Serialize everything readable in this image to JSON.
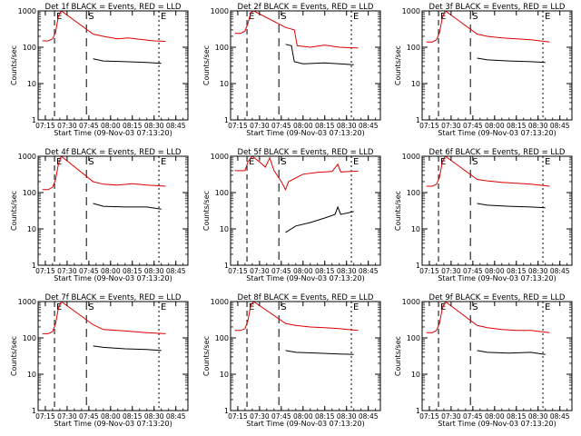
{
  "ui": {
    "colors": {
      "events": "#000000",
      "lld": "#dd0000",
      "axis": "#000000",
      "background": "#ffffff"
    }
  },
  "shared": {
    "xlabel": "Start Time (09-Nov-03 07:13:20)",
    "ylabel": "Counts/sec",
    "xticks": [
      "07:15",
      "07:30",
      "07:45",
      "08:00",
      "08:15",
      "08:30",
      "08:45"
    ],
    "yticks": [
      "1",
      "10",
      "100",
      "1000"
    ],
    "xlim_minutes": [
      -3.3,
      100
    ],
    "ylim": [
      1,
      1000
    ],
    "markers": {
      "e1": "E",
      "s": "S",
      "e2": "E"
    }
  },
  "chart_data": [
    {
      "type": "line",
      "title": "Det 1f BLACK = Events, RED = LLD",
      "yscale": "log",
      "markers_min": [
        8,
        30,
        80
      ],
      "series": [
        {
          "name": "Events",
          "color": "#000000",
          "x": [
            "07:48",
            "07:55",
            "08:10",
            "08:25",
            "08:35"
          ],
          "values": [
            48,
            42,
            40,
            38,
            36
          ]
        },
        {
          "name": "LLD",
          "color": "#dd0000",
          "x": [
            "07:13",
            "07:17",
            "07:20",
            "07:22",
            "07:24",
            "07:26",
            "07:48",
            "07:55",
            "08:05",
            "08:12",
            "08:20",
            "08:30",
            "08:38"
          ],
          "values": [
            150,
            150,
            170,
            250,
            700,
            1000,
            230,
            200,
            170,
            180,
            165,
            150,
            145
          ]
        }
      ]
    },
    {
      "type": "line",
      "title": "Det 2f BLACK = Events, RED = LLD",
      "yscale": "log",
      "markers_min": [
        8,
        30,
        80
      ],
      "series": [
        {
          "name": "Events",
          "color": "#000000",
          "x": [
            "07:48",
            "07:52",
            "07:54",
            "08:00",
            "08:15",
            "08:25",
            "08:35"
          ],
          "values": [
            120,
            110,
            40,
            35,
            37,
            35,
            33
          ]
        },
        {
          "name": "LLD",
          "color": "#dd0000",
          "x": [
            "07:13",
            "07:17",
            "07:20",
            "07:22",
            "07:24",
            "07:26",
            "07:48",
            "07:54",
            "07:56",
            "08:05",
            "08:15",
            "08:25",
            "08:38"
          ],
          "values": [
            240,
            240,
            280,
            450,
            900,
            1000,
            350,
            300,
            110,
            100,
            115,
            100,
            95
          ]
        }
      ]
    },
    {
      "type": "line",
      "title": "Det 3f BLACK = Events, RED = LLD",
      "yscale": "log",
      "markers_min": [
        8,
        30,
        80
      ],
      "series": [
        {
          "name": "Events",
          "color": "#000000",
          "x": [
            "07:48",
            "07:55",
            "08:10",
            "08:25",
            "08:35"
          ],
          "values": [
            50,
            45,
            42,
            40,
            38
          ]
        },
        {
          "name": "LLD",
          "color": "#dd0000",
          "x": [
            "07:13",
            "07:17",
            "07:20",
            "07:22",
            "07:24",
            "07:26",
            "07:48",
            "07:55",
            "08:05",
            "08:15",
            "08:25",
            "08:38"
          ],
          "values": [
            140,
            140,
            160,
            250,
            650,
            1000,
            230,
            200,
            180,
            170,
            160,
            140
          ]
        }
      ]
    },
    {
      "type": "line",
      "title": "Det 4f BLACK = Events, RED = LLD",
      "yscale": "log",
      "markers_min": [
        8,
        30,
        80
      ],
      "series": [
        {
          "name": "Events",
          "color": "#000000",
          "x": [
            "07:48",
            "07:55",
            "08:10",
            "08:25",
            "08:35"
          ],
          "values": [
            50,
            42,
            40,
            40,
            35
          ]
        },
        {
          "name": "LLD",
          "color": "#dd0000",
          "x": [
            "07:13",
            "07:17",
            "07:20",
            "07:22",
            "07:24",
            "07:26",
            "07:48",
            "07:55",
            "08:05",
            "08:15",
            "08:25",
            "08:38"
          ],
          "values": [
            120,
            120,
            140,
            220,
            600,
            1000,
            200,
            170,
            160,
            175,
            160,
            150
          ]
        }
      ]
    },
    {
      "type": "line",
      "title": "Det 5f BLACK = Events, RED = LLD",
      "yscale": "log",
      "markers_min": [
        8,
        30,
        80
      ],
      "series": [
        {
          "name": "Events",
          "color": "#000000",
          "x": [
            "07:48",
            "07:55",
            "08:05",
            "08:15",
            "08:22",
            "08:24",
            "08:26",
            "08:35"
          ],
          "values": [
            8,
            12,
            15,
            20,
            25,
            40,
            25,
            30
          ]
        },
        {
          "name": "LLD",
          "color": "#dd0000",
          "x": [
            "07:13",
            "07:20",
            "07:22",
            "07:25",
            "07:30",
            "07:34",
            "07:37",
            "07:40",
            "07:45",
            "07:48",
            "07:50",
            "08:00",
            "08:10",
            "08:20",
            "08:24",
            "08:26",
            "08:38"
          ],
          "values": [
            400,
            400,
            700,
            1000,
            700,
            500,
            900,
            400,
            200,
            120,
            200,
            320,
            360,
            380,
            600,
            370,
            390
          ]
        }
      ]
    },
    {
      "type": "line",
      "title": "Det 6f BLACK = Events, RED = LLD",
      "yscale": "log",
      "markers_min": [
        8,
        30,
        80
      ],
      "series": [
        {
          "name": "Events",
          "color": "#000000",
          "x": [
            "07:48",
            "07:55",
            "08:10",
            "08:25",
            "08:35"
          ],
          "values": [
            50,
            45,
            42,
            40,
            38
          ]
        },
        {
          "name": "LLD",
          "color": "#dd0000",
          "x": [
            "07:13",
            "07:17",
            "07:20",
            "07:22",
            "07:24",
            "07:26",
            "07:48",
            "07:55",
            "08:05",
            "08:15",
            "08:25",
            "08:38"
          ],
          "values": [
            150,
            150,
            170,
            260,
            700,
            1000,
            230,
            210,
            190,
            180,
            170,
            150
          ]
        }
      ]
    },
    {
      "type": "line",
      "title": "Det 7f BLACK = Events, RED = LLD",
      "yscale": "log",
      "markers_min": [
        8,
        30,
        80
      ],
      "series": [
        {
          "name": "Events",
          "color": "#000000",
          "x": [
            "07:48",
            "07:55",
            "08:10",
            "08:25",
            "08:35"
          ],
          "values": [
            60,
            55,
            50,
            48,
            45
          ]
        },
        {
          "name": "LLD",
          "color": "#dd0000",
          "x": [
            "07:13",
            "07:17",
            "07:20",
            "07:22",
            "07:24",
            "07:26",
            "07:48",
            "07:55",
            "08:05",
            "08:15",
            "08:25",
            "08:38"
          ],
          "values": [
            130,
            130,
            150,
            240,
            650,
            1000,
            230,
            170,
            160,
            150,
            140,
            130
          ]
        }
      ]
    },
    {
      "type": "line",
      "title": "Det 8f BLACK = Events, RED = LLD",
      "yscale": "log",
      "markers_min": [
        8,
        30,
        80
      ],
      "series": [
        {
          "name": "Events",
          "color": "#000000",
          "x": [
            "07:48",
            "07:55",
            "08:10",
            "08:25",
            "08:35"
          ],
          "values": [
            45,
            40,
            38,
            36,
            35
          ]
        },
        {
          "name": "LLD",
          "color": "#dd0000",
          "x": [
            "07:13",
            "07:17",
            "07:20",
            "07:22",
            "07:24",
            "07:26",
            "07:48",
            "07:55",
            "08:05",
            "08:15",
            "08:25",
            "08:38"
          ],
          "values": [
            160,
            160,
            180,
            300,
            800,
            1000,
            250,
            220,
            200,
            190,
            180,
            160
          ]
        }
      ]
    },
    {
      "type": "line",
      "title": "Det 9f BLACK = Events, RED = LLD",
      "yscale": "log",
      "markers_min": [
        8,
        30,
        80
      ],
      "series": [
        {
          "name": "Events",
          "color": "#000000",
          "x": [
            "07:48",
            "07:55",
            "08:10",
            "08:25",
            "08:35"
          ],
          "values": [
            45,
            40,
            38,
            40,
            35
          ]
        },
        {
          "name": "LLD",
          "color": "#dd0000",
          "x": [
            "07:13",
            "07:17",
            "07:20",
            "07:22",
            "07:24",
            "07:26",
            "07:48",
            "07:55",
            "08:05",
            "08:15",
            "08:25",
            "08:38"
          ],
          "values": [
            140,
            140,
            160,
            250,
            650,
            1000,
            220,
            190,
            170,
            160,
            160,
            140
          ]
        }
      ]
    }
  ]
}
